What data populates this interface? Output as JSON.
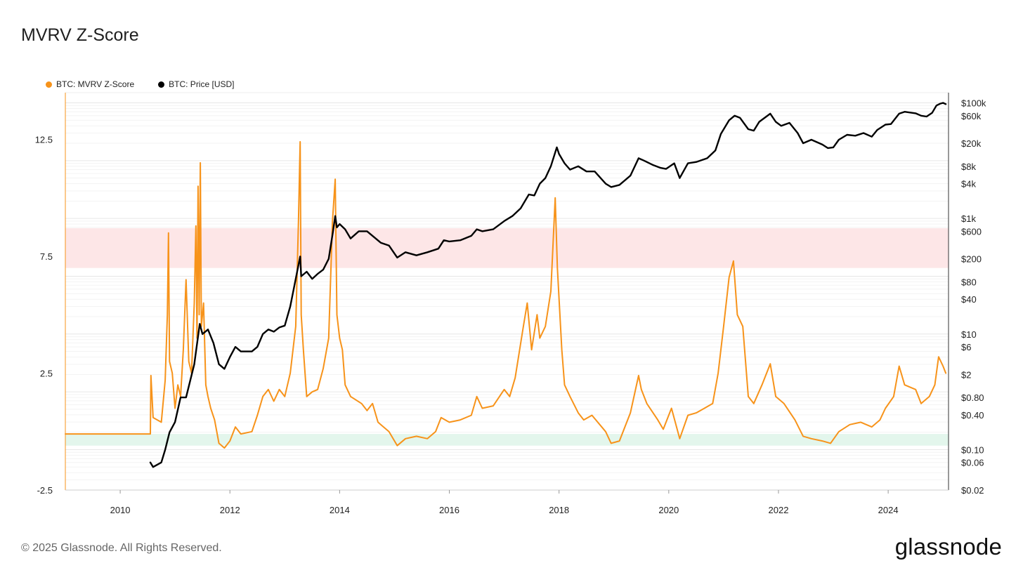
{
  "header": {
    "title": "MVRV Z-Score"
  },
  "footer": {
    "copyright": "© 2025 Glassnode. All Rights Reserved.",
    "brand": "glassnode"
  },
  "chart_data": {
    "type": "line",
    "title": "MVRV Z-Score",
    "legend_position": "top-left",
    "grid": true,
    "x_range": [
      2009.0,
      2025.1
    ],
    "x_ticks": [
      "2010",
      "2012",
      "2014",
      "2016",
      "2018",
      "2020",
      "2022",
      "2024"
    ],
    "y_left": {
      "range": [
        -2.5,
        14.5
      ],
      "ticks": [
        "12.5",
        "7.5",
        "2.5",
        "-2.5"
      ]
    },
    "y_right": {
      "scale": "log",
      "range": [
        0.02,
        150000
      ],
      "ticks": [
        "$100k",
        "$60k",
        "$20k",
        "$8k",
        "$4k",
        "$1k",
        "$600",
        "$200",
        "$80",
        "$40",
        "$10",
        "$6",
        "$2",
        "$0.80",
        "$0.40",
        "$0.10",
        "$0.06",
        "$0.02"
      ]
    },
    "bands": [
      {
        "name": "overvalued",
        "y_from": 7.0,
        "y_to": 8.7,
        "color": "#fde6e7"
      },
      {
        "name": "undervalued",
        "y_from": -0.6,
        "y_to": -0.1,
        "color": "#e3f6ec"
      }
    ],
    "series": [
      {
        "name": "BTC: MVRV Z-Score",
        "axis": "left",
        "color": "#f7931a",
        "points": [
          [
            2009.0,
            -0.1
          ],
          [
            2010.55,
            -0.1
          ],
          [
            2010.56,
            2.4
          ],
          [
            2010.6,
            0.6
          ],
          [
            2010.75,
            0.4
          ],
          [
            2010.82,
            2.2
          ],
          [
            2010.86,
            5.0
          ],
          [
            2010.88,
            8.5
          ],
          [
            2010.9,
            3.0
          ],
          [
            2010.95,
            2.5
          ],
          [
            2011.0,
            1.0
          ],
          [
            2011.05,
            2.0
          ],
          [
            2011.1,
            1.5
          ],
          [
            2011.15,
            3.5
          ],
          [
            2011.2,
            6.5
          ],
          [
            2011.25,
            3.0
          ],
          [
            2011.3,
            2.5
          ],
          [
            2011.35,
            5.5
          ],
          [
            2011.38,
            8.8
          ],
          [
            2011.4,
            4.0
          ],
          [
            2011.42,
            10.5
          ],
          [
            2011.44,
            5.0
          ],
          [
            2011.46,
            11.5
          ],
          [
            2011.48,
            4.5
          ],
          [
            2011.52,
            5.5
          ],
          [
            2011.56,
            2.0
          ],
          [
            2011.6,
            1.5
          ],
          [
            2011.65,
            1.0
          ],
          [
            2011.72,
            0.5
          ],
          [
            2011.8,
            -0.5
          ],
          [
            2011.9,
            -0.7
          ],
          [
            2012.0,
            -0.4
          ],
          [
            2012.1,
            0.2
          ],
          [
            2012.2,
            -0.1
          ],
          [
            2012.4,
            0.0
          ],
          [
            2012.5,
            0.7
          ],
          [
            2012.6,
            1.5
          ],
          [
            2012.7,
            1.8
          ],
          [
            2012.8,
            1.3
          ],
          [
            2012.9,
            1.8
          ],
          [
            2013.0,
            1.5
          ],
          [
            2013.1,
            2.5
          ],
          [
            2013.2,
            4.5
          ],
          [
            2013.25,
            9.0
          ],
          [
            2013.28,
            12.4
          ],
          [
            2013.3,
            5.0
          ],
          [
            2013.34,
            3.5
          ],
          [
            2013.4,
            1.5
          ],
          [
            2013.5,
            1.7
          ],
          [
            2013.6,
            1.8
          ],
          [
            2013.7,
            2.7
          ],
          [
            2013.8,
            4.0
          ],
          [
            2013.87,
            9.0
          ],
          [
            2013.92,
            10.8
          ],
          [
            2013.95,
            5.0
          ],
          [
            2014.0,
            4.0
          ],
          [
            2014.05,
            3.5
          ],
          [
            2014.1,
            2.0
          ],
          [
            2014.2,
            1.5
          ],
          [
            2014.4,
            1.2
          ],
          [
            2014.5,
            0.9
          ],
          [
            2014.6,
            1.2
          ],
          [
            2014.7,
            0.4
          ],
          [
            2014.8,
            0.2
          ],
          [
            2014.9,
            0.0
          ],
          [
            2015.05,
            -0.6
          ],
          [
            2015.2,
            -0.3
          ],
          [
            2015.4,
            -0.2
          ],
          [
            2015.6,
            -0.3
          ],
          [
            2015.75,
            0.0
          ],
          [
            2015.85,
            0.6
          ],
          [
            2016.0,
            0.4
          ],
          [
            2016.2,
            0.5
          ],
          [
            2016.4,
            0.7
          ],
          [
            2016.5,
            1.5
          ],
          [
            2016.6,
            1.0
          ],
          [
            2016.8,
            1.1
          ],
          [
            2017.0,
            1.8
          ],
          [
            2017.1,
            1.5
          ],
          [
            2017.2,
            2.3
          ],
          [
            2017.35,
            4.5
          ],
          [
            2017.42,
            5.5
          ],
          [
            2017.5,
            3.5
          ],
          [
            2017.6,
            5.0
          ],
          [
            2017.65,
            4.0
          ],
          [
            2017.75,
            4.5
          ],
          [
            2017.85,
            6.0
          ],
          [
            2017.93,
            10.0
          ],
          [
            2017.97,
            7.0
          ],
          [
            2018.05,
            3.5
          ],
          [
            2018.1,
            2.0
          ],
          [
            2018.2,
            1.5
          ],
          [
            2018.35,
            0.8
          ],
          [
            2018.45,
            0.5
          ],
          [
            2018.6,
            0.7
          ],
          [
            2018.85,
            0.0
          ],
          [
            2018.95,
            -0.5
          ],
          [
            2019.1,
            -0.4
          ],
          [
            2019.3,
            0.8
          ],
          [
            2019.45,
            2.4
          ],
          [
            2019.5,
            1.8
          ],
          [
            2019.6,
            1.2
          ],
          [
            2019.8,
            0.5
          ],
          [
            2019.9,
            0.1
          ],
          [
            2020.05,
            1.0
          ],
          [
            2020.2,
            -0.3
          ],
          [
            2020.35,
            0.7
          ],
          [
            2020.5,
            0.8
          ],
          [
            2020.65,
            1.0
          ],
          [
            2020.8,
            1.2
          ],
          [
            2020.9,
            2.5
          ],
          [
            2021.0,
            4.5
          ],
          [
            2021.1,
            6.6
          ],
          [
            2021.18,
            7.3
          ],
          [
            2021.25,
            5.0
          ],
          [
            2021.35,
            4.5
          ],
          [
            2021.45,
            1.5
          ],
          [
            2021.55,
            1.2
          ],
          [
            2021.7,
            2.0
          ],
          [
            2021.85,
            2.9
          ],
          [
            2021.95,
            1.5
          ],
          [
            2022.1,
            1.2
          ],
          [
            2022.3,
            0.5
          ],
          [
            2022.45,
            -0.2
          ],
          [
            2022.6,
            -0.3
          ],
          [
            2022.8,
            -0.4
          ],
          [
            2022.95,
            -0.5
          ],
          [
            2023.1,
            0.0
          ],
          [
            2023.3,
            0.3
          ],
          [
            2023.5,
            0.4
          ],
          [
            2023.7,
            0.2
          ],
          [
            2023.85,
            0.5
          ],
          [
            2023.95,
            1.0
          ],
          [
            2024.1,
            1.5
          ],
          [
            2024.2,
            2.8
          ],
          [
            2024.3,
            2.0
          ],
          [
            2024.5,
            1.8
          ],
          [
            2024.6,
            1.2
          ],
          [
            2024.75,
            1.5
          ],
          [
            2024.85,
            2.0
          ],
          [
            2024.92,
            3.2
          ],
          [
            2025.0,
            2.8
          ],
          [
            2025.05,
            2.5
          ]
        ]
      },
      {
        "name": "BTC: Price [USD]",
        "axis": "right",
        "color": "#000000",
        "points": [
          [
            2010.55,
            0.06
          ],
          [
            2010.6,
            0.05
          ],
          [
            2010.75,
            0.06
          ],
          [
            2010.82,
            0.1
          ],
          [
            2010.9,
            0.2
          ],
          [
            2011.0,
            0.3
          ],
          [
            2011.1,
            0.8
          ],
          [
            2011.2,
            0.8
          ],
          [
            2011.35,
            3
          ],
          [
            2011.45,
            15
          ],
          [
            2011.5,
            10
          ],
          [
            2011.6,
            12
          ],
          [
            2011.7,
            7
          ],
          [
            2011.8,
            3
          ],
          [
            2011.9,
            2.5
          ],
          [
            2012.0,
            4
          ],
          [
            2012.1,
            6
          ],
          [
            2012.2,
            5
          ],
          [
            2012.4,
            5
          ],
          [
            2012.5,
            6
          ],
          [
            2012.6,
            10
          ],
          [
            2012.7,
            12
          ],
          [
            2012.8,
            11
          ],
          [
            2012.9,
            13
          ],
          [
            2013.0,
            14
          ],
          [
            2013.1,
            30
          ],
          [
            2013.2,
            90
          ],
          [
            2013.28,
            220
          ],
          [
            2013.3,
            100
          ],
          [
            2013.4,
            120
          ],
          [
            2013.5,
            90
          ],
          [
            2013.6,
            110
          ],
          [
            2013.7,
            130
          ],
          [
            2013.8,
            200
          ],
          [
            2013.88,
            600
          ],
          [
            2013.92,
            1100
          ],
          [
            2013.95,
            700
          ],
          [
            2014.0,
            800
          ],
          [
            2014.1,
            650
          ],
          [
            2014.2,
            450
          ],
          [
            2014.35,
            600
          ],
          [
            2014.5,
            600
          ],
          [
            2014.6,
            500
          ],
          [
            2014.75,
            380
          ],
          [
            2014.9,
            340
          ],
          [
            2015.05,
            210
          ],
          [
            2015.2,
            260
          ],
          [
            2015.4,
            230
          ],
          [
            2015.6,
            260
          ],
          [
            2015.8,
            300
          ],
          [
            2015.9,
            420
          ],
          [
            2016.0,
            400
          ],
          [
            2016.2,
            420
          ],
          [
            2016.4,
            500
          ],
          [
            2016.5,
            650
          ],
          [
            2016.6,
            600
          ],
          [
            2016.8,
            650
          ],
          [
            2017.0,
            900
          ],
          [
            2017.15,
            1100
          ],
          [
            2017.3,
            1500
          ],
          [
            2017.45,
            2600
          ],
          [
            2017.55,
            2500
          ],
          [
            2017.65,
            4000
          ],
          [
            2017.75,
            5000
          ],
          [
            2017.85,
            8000
          ],
          [
            2017.96,
            17000
          ],
          [
            2018.0,
            13000
          ],
          [
            2018.1,
            9000
          ],
          [
            2018.2,
            7000
          ],
          [
            2018.35,
            8000
          ],
          [
            2018.5,
            6500
          ],
          [
            2018.65,
            6500
          ],
          [
            2018.85,
            4000
          ],
          [
            2018.95,
            3500
          ],
          [
            2019.1,
            3800
          ],
          [
            2019.3,
            5500
          ],
          [
            2019.45,
            11000
          ],
          [
            2019.55,
            10000
          ],
          [
            2019.7,
            8500
          ],
          [
            2019.85,
            7500
          ],
          [
            2019.95,
            7200
          ],
          [
            2020.1,
            9000
          ],
          [
            2020.2,
            5000
          ],
          [
            2020.35,
            9000
          ],
          [
            2020.5,
            9500
          ],
          [
            2020.7,
            11000
          ],
          [
            2020.85,
            15000
          ],
          [
            2020.95,
            29000
          ],
          [
            2021.1,
            50000
          ],
          [
            2021.2,
            60000
          ],
          [
            2021.3,
            55000
          ],
          [
            2021.45,
            35000
          ],
          [
            2021.55,
            33000
          ],
          [
            2021.65,
            47000
          ],
          [
            2021.85,
            65000
          ],
          [
            2021.95,
            47000
          ],
          [
            2022.05,
            40000
          ],
          [
            2022.2,
            45000
          ],
          [
            2022.35,
            30000
          ],
          [
            2022.45,
            20000
          ],
          [
            2022.6,
            23000
          ],
          [
            2022.8,
            19000
          ],
          [
            2022.9,
            16500
          ],
          [
            2023.0,
            17000
          ],
          [
            2023.1,
            23000
          ],
          [
            2023.25,
            28000
          ],
          [
            2023.4,
            27000
          ],
          [
            2023.55,
            30000
          ],
          [
            2023.7,
            26000
          ],
          [
            2023.8,
            34000
          ],
          [
            2023.95,
            42000
          ],
          [
            2024.05,
            43000
          ],
          [
            2024.2,
            65000
          ],
          [
            2024.3,
            70000
          ],
          [
            2024.5,
            66000
          ],
          [
            2024.6,
            60000
          ],
          [
            2024.7,
            58000
          ],
          [
            2024.8,
            67000
          ],
          [
            2024.88,
            90000
          ],
          [
            2024.95,
            97000
          ],
          [
            2025.0,
            100000
          ],
          [
            2025.05,
            95000
          ]
        ]
      }
    ]
  }
}
